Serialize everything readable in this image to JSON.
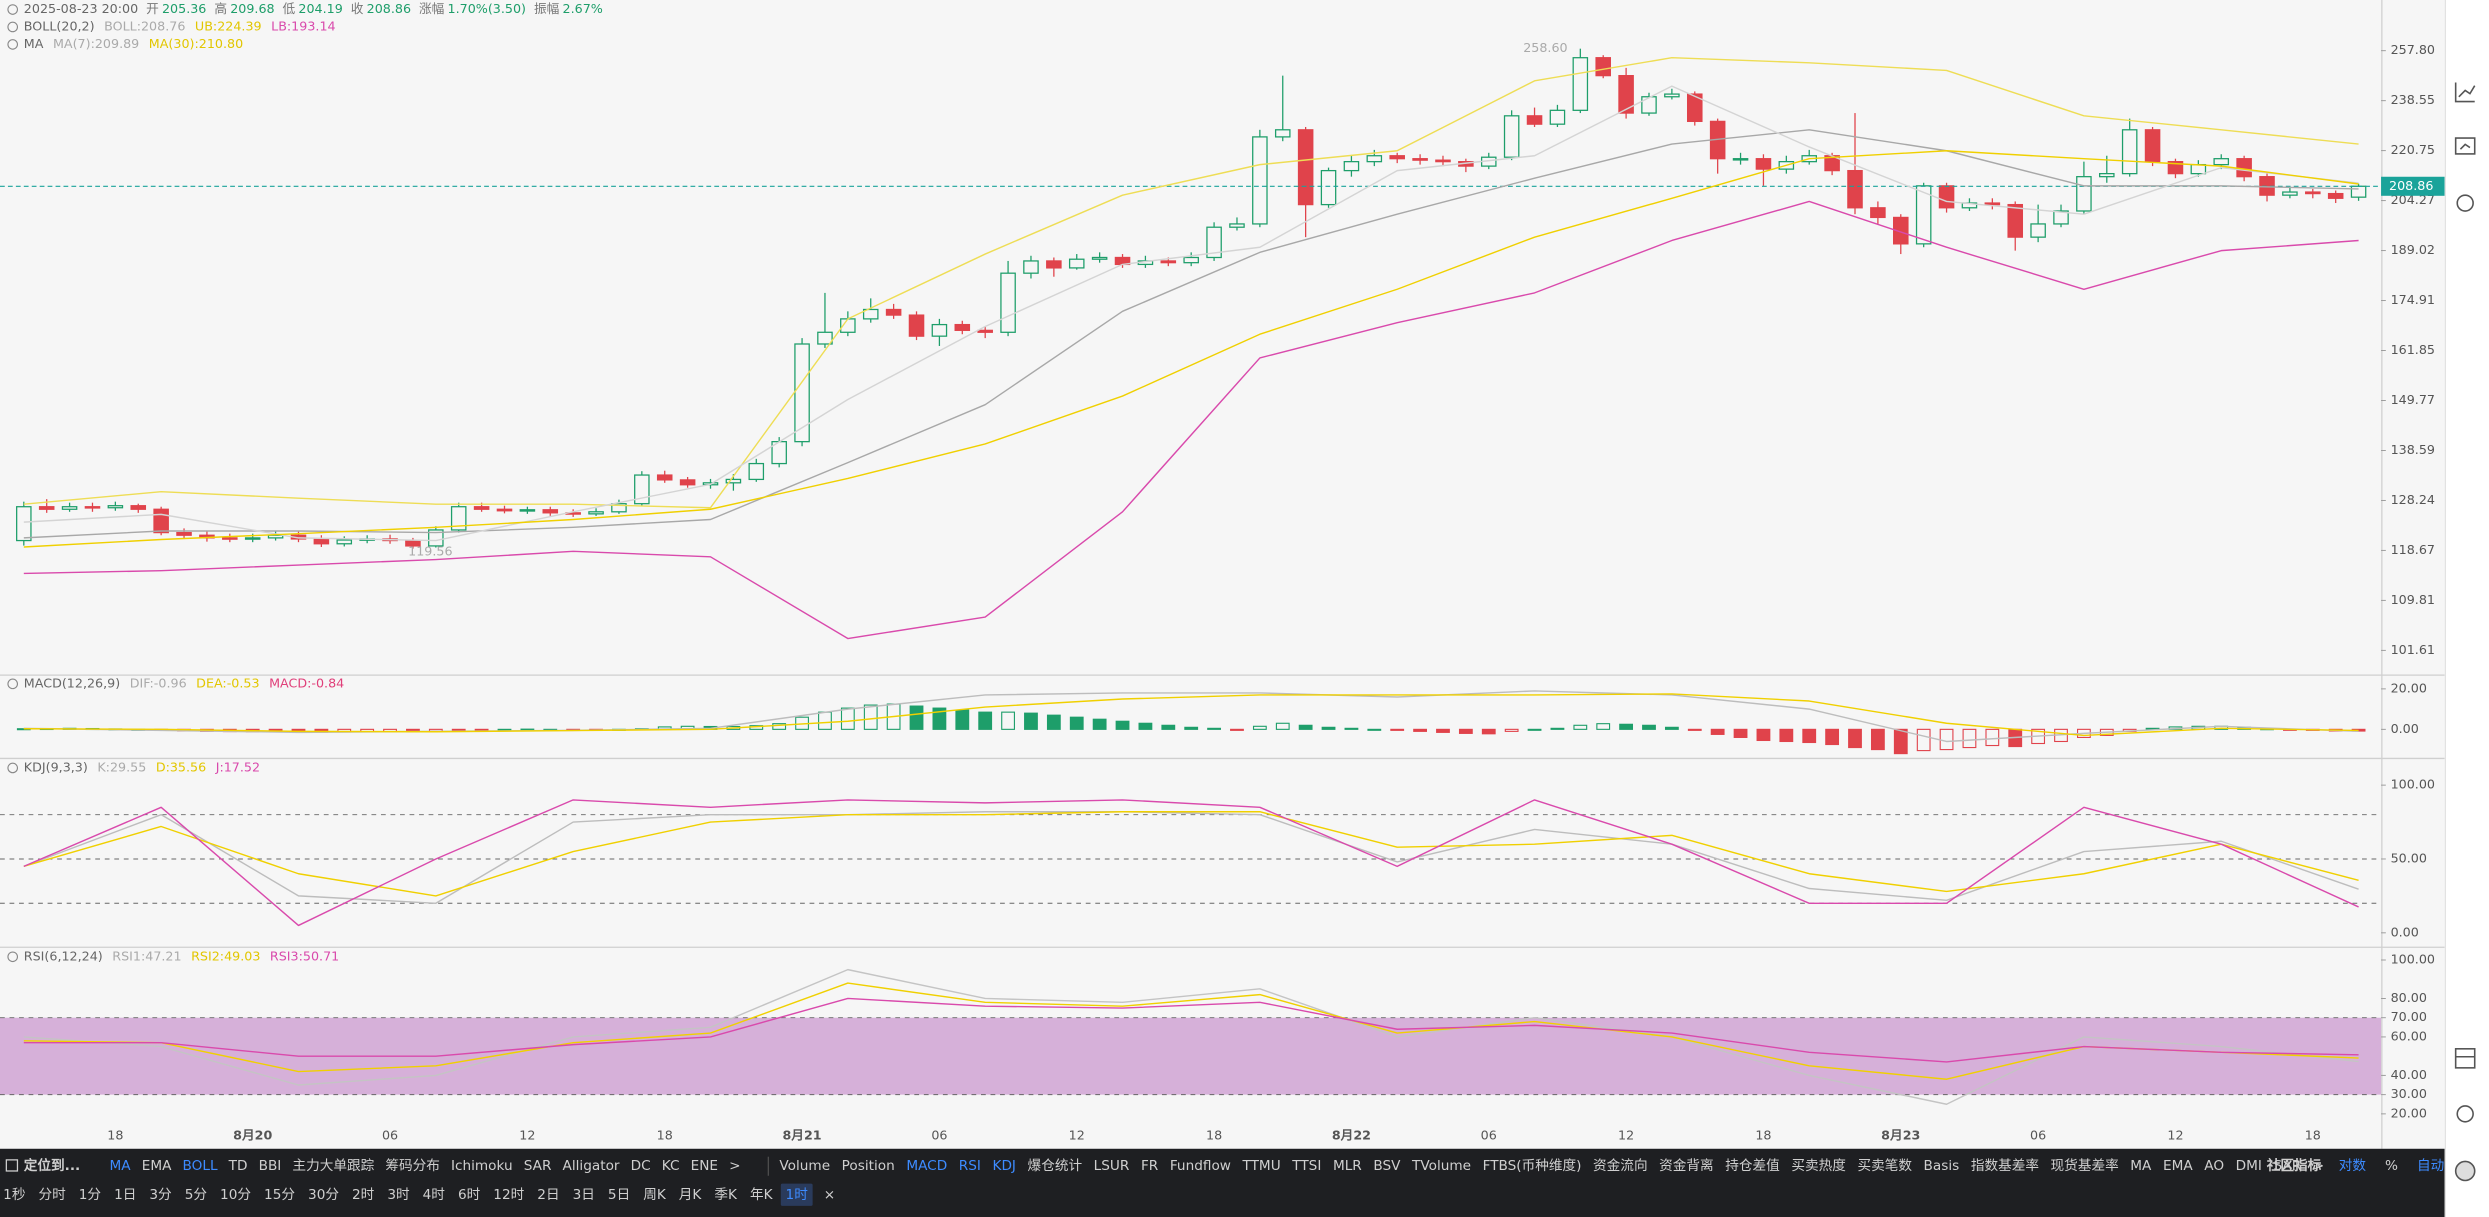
{
  "status": {
    "datetime": "2025-08-23 20:00",
    "items": [
      {
        "label": "开",
        "value": "205.36"
      },
      {
        "label": "高",
        "value": "209.68"
      },
      {
        "label": "低",
        "value": "204.19"
      },
      {
        "label": "收",
        "value": "208.86"
      },
      {
        "label": "涨幅",
        "value": "1.70%(3.50)"
      },
      {
        "label": "振幅",
        "value": "2.67%"
      }
    ]
  },
  "chart_data": [
    {
      "type": "candlestick",
      "categories": [
        null,
        null,
        null,
        null,
        "18",
        null,
        null,
        null,
        null,
        null,
        "8月20",
        null,
        null,
        null,
        null,
        null,
        "06",
        null,
        null,
        null,
        null,
        null,
        "12",
        null,
        null,
        null,
        null,
        null,
        "18",
        null,
        null,
        null,
        null,
        null,
        "8月21",
        null,
        null,
        null,
        null,
        null,
        "06",
        null,
        null,
        null,
        null,
        null,
        "12",
        null,
        null,
        null,
        null,
        null,
        "18",
        null,
        null,
        null,
        null,
        null,
        "8月22",
        null,
        null,
        null,
        null,
        null,
        "06",
        null,
        null,
        null,
        null,
        null,
        "12",
        null,
        null,
        null,
        null,
        null,
        "18",
        null,
        null,
        null,
        null,
        null,
        "8月23",
        null,
        null,
        null,
        null,
        null,
        "06",
        null,
        null,
        null,
        null,
        null,
        "12",
        null,
        null,
        null,
        null,
        null,
        "18",
        null,
        null
      ],
      "open": [
        120.5,
        127,
        126.5,
        127,
        126.8,
        127.2,
        126.5,
        122,
        121.5,
        121,
        120.8,
        121,
        121.5,
        120.8,
        119.9,
        120.6,
        120.8,
        120.5,
        119.5,
        122.5,
        127,
        126.5,
        126.2,
        126.4,
        125.8,
        125.6,
        126,
        127.6,
        133.4,
        132.4,
        131.4,
        131.8,
        132.5,
        135.8,
        140.5,
        163.5,
        166.5,
        170,
        172.5,
        171,
        165.5,
        168.5,
        167,
        166.5,
        182.5,
        186,
        184,
        186.5,
        187,
        185,
        186,
        185.5,
        187,
        196,
        197,
        225.5,
        228,
        203,
        214,
        217,
        219,
        218,
        217.5,
        217,
        215.5,
        218.5,
        233,
        230,
        235,
        255,
        248,
        234,
        240,
        241,
        231,
        218,
        218,
        214.5,
        217,
        219,
        214,
        202,
        199,
        191,
        209,
        202,
        203.5,
        203,
        193,
        197,
        201,
        212,
        213,
        228,
        217,
        213,
        216,
        218,
        212,
        206,
        207,
        206.5,
        205.36
      ],
      "high": [
        128,
        128.5,
        127.8,
        127.8,
        128,
        127.6,
        127,
        122.8,
        122.3,
        121.8,
        121.8,
        122.3,
        122.2,
        121.5,
        121.3,
        121.5,
        121.6,
        121,
        123.2,
        127.8,
        127.8,
        127.2,
        127,
        127,
        126.5,
        126.7,
        128.4,
        134.2,
        134.3,
        133,
        132.6,
        133.6,
        136.8,
        141.5,
        165,
        177,
        172,
        175.5,
        174,
        172,
        170,
        169.5,
        168,
        186,
        187.5,
        187,
        188,
        188.5,
        188,
        187.5,
        187,
        188.5,
        197.5,
        199,
        228,
        248,
        229,
        215,
        219,
        221,
        220,
        219.5,
        219,
        218,
        220,
        235,
        236,
        237,
        258.6,
        256,
        251,
        241.5,
        243,
        242,
        232,
        220,
        219.5,
        219,
        221,
        220,
        234,
        204,
        200,
        210,
        210,
        205,
        205,
        204,
        203,
        203,
        217,
        219,
        232,
        229,
        218,
        217.5,
        219.5,
        219,
        213,
        208.5,
        208,
        207.5,
        209.68
      ],
      "low": [
        119.56,
        125.8,
        126,
        126,
        126.2,
        125.8,
        121.5,
        120.8,
        120.3,
        120.2,
        120.2,
        120.5,
        120.2,
        119.3,
        119.4,
        120,
        119.9,
        119,
        119.2,
        122,
        126,
        125.7,
        125.6,
        125.2,
        125,
        125.2,
        125.6,
        127.2,
        131.8,
        130.8,
        130.6,
        130.2,
        132,
        135,
        139.5,
        162.5,
        165.5,
        169,
        170,
        164.5,
        163,
        166,
        165,
        165.5,
        181,
        181.5,
        183.5,
        185.5,
        184,
        184,
        184.5,
        184.5,
        186,
        195,
        196,
        224,
        193,
        202,
        212,
        215.5,
        216.5,
        216,
        215.5,
        213.5,
        214.5,
        217.5,
        229,
        229,
        234,
        247,
        232,
        233,
        239,
        229.5,
        213,
        216,
        209,
        213,
        216,
        212.5,
        200,
        197,
        188,
        190,
        200.5,
        201,
        201.5,
        189,
        191.5,
        196,
        200,
        210,
        212,
        215.5,
        211.5,
        212,
        214.5,
        210.5,
        204,
        205,
        205,
        203.5,
        204.19
      ],
      "close": [
        127,
        126.5,
        127,
        126.8,
        127.2,
        126.5,
        122,
        121.5,
        121,
        120.8,
        121,
        121.5,
        120.8,
        119.9,
        120.6,
        120.8,
        120.5,
        119.5,
        122.5,
        127,
        126.5,
        126.2,
        126.4,
        125.8,
        125.6,
        126,
        127.6,
        133.4,
        132.4,
        131.4,
        131.8,
        132.5,
        135.8,
        140.5,
        163.5,
        166.5,
        170,
        172.5,
        171,
        165.5,
        168.5,
        167,
        166.5,
        182.5,
        186,
        184,
        186.5,
        187,
        185,
        186,
        185.5,
        187,
        196,
        197,
        225.5,
        228,
        203,
        214,
        217,
        219,
        218,
        217.5,
        217,
        215.5,
        218.5,
        233,
        230,
        235,
        255,
        248,
        234,
        240,
        241,
        231,
        218,
        218,
        214.5,
        217,
        219,
        214,
        202,
        199,
        191,
        209,
        202,
        203.5,
        203,
        193,
        197,
        201,
        212,
        213,
        228,
        217,
        213,
        216,
        218,
        212,
        206,
        207,
        206.5,
        205,
        208.86
      ],
      "up_color": "#1e9e6a",
      "down_color": "#e0434b",
      "ylim": [
        97.9,
        278.9
      ],
      "log": true,
      "yticks": [
        {
          "value": 257.8,
          "label": "257.80"
        },
        238.55,
        220.75,
        204.27,
        189.02,
        174.91,
        161.85,
        149.77,
        138.59,
        128.24,
        118.67,
        109.81,
        101.61
      ],
      "x": [
        0,
        6,
        12,
        18,
        24,
        30,
        36,
        42,
        48,
        54,
        60,
        66,
        72,
        78,
        84,
        90,
        96,
        102
      ],
      "series": [
        {
          "color": "#a8a8a8",
          "values": [
            121,
            122.3,
            122.3,
            122,
            123,
            124.5,
            136,
            148.8,
            172,
            188.5,
            200,
            211.5,
            223,
            228,
            220.7,
            209,
            209,
            208
          ]
        },
        {
          "color": "#eedd55",
          "values": [
            127.5,
            130,
            128.7,
            127.5,
            127.5,
            126.8,
            170,
            188,
            206,
            216,
            220.7,
            246,
            255,
            253,
            250,
            233,
            228,
            223
          ]
        },
        {
          "color": "#d94aac",
          "values": [
            114.5,
            115,
            116,
            117,
            118.5,
            117.5,
            103.5,
            107,
            126,
            160,
            169,
            177,
            192,
            204,
            190,
            178,
            189,
            192
          ]
        },
        {
          "color": "#d4d4d4",
          "values": [
            124,
            125.5,
            121,
            120.5,
            126,
            131.5,
            150,
            168,
            185,
            190,
            214,
            219,
            244,
            222,
            204,
            200,
            215,
            209.9
          ]
        },
        {
          "color": "#f0d000",
          "values": [
            119.3,
            120.7,
            121.8,
            123,
            124.5,
            126.5,
            132.7,
            140,
            150.8,
            166,
            178,
            193,
            205,
            218,
            220.7,
            218,
            215.5,
            209.6
          ]
        }
      ],
      "indicators": [
        {
          "title": "BOLL(20,2)",
          "legend": [
            "BOLL:208.76",
            "UB:224.39",
            "LB:193.14"
          ],
          "legend_colors": [
            "#aaaaaa",
            "#e2c600",
            "#d94aac"
          ]
        },
        {
          "title": "MA",
          "legend": [
            "MA(7):209.89",
            "MA(30):210.80"
          ],
          "legend_colors": [
            "#aaaaaa",
            "#e2c600"
          ]
        }
      ],
      "max_label": "258.60",
      "min_label": "119.56",
      "last_price": 208.86,
      "last_color": "#1aa39a"
    },
    {
      "type": "macd",
      "title": "MACD(12,26,9)",
      "legend": [
        "DIF:-0.96",
        "DEA:-0.53",
        "MACD:-0.84"
      ],
      "legend_colors": [
        "#aaaaaa",
        "#e2c600",
        "#e0407a"
      ],
      "histogram": [
        0.3,
        0.4,
        0.5,
        0.4,
        0.2,
        0,
        -0.5,
        -0.8,
        -1,
        -1.1,
        -1.2,
        -1.2,
        -1.3,
        -1.4,
        -1.3,
        -1.2,
        -1.1,
        -1.2,
        -0.9,
        -0.3,
        -0.1,
        0,
        0.1,
        0,
        -0.1,
        -0.1,
        0,
        0.3,
        1.2,
        1.5,
        1.4,
        1.4,
        1.8,
        2.8,
        6,
        8.5,
        10.5,
        12,
        12.5,
        11.5,
        10.5,
        9.5,
        8.5,
        8.5,
        8,
        7,
        6,
        5,
        4,
        3,
        2,
        1,
        0.5,
        -0.5,
        1.5,
        3,
        2,
        1,
        0.5,
        0,
        -0.5,
        -1,
        -1.5,
        -2,
        -2.2,
        -1,
        0,
        0.5,
        2,
        2.8,
        2.5,
        2,
        1,
        -0.5,
        -2.5,
        -4,
        -5.5,
        -6,
        -6.5,
        -7.5,
        -9,
        -10,
        -12,
        -10.5,
        -10,
        -9,
        -8,
        -8.5,
        -7,
        -6,
        -4,
        -3,
        -1,
        0.5,
        1.2,
        1.5,
        1.5,
        1,
        0.3,
        -0.3,
        -0.5,
        -0.8,
        -0.84
      ],
      "up_color": "#1e9e6a",
      "down_color": "#e0434b",
      "x": [
        0,
        6,
        12,
        18,
        24,
        30,
        36,
        42,
        48,
        54,
        60,
        66,
        72,
        78,
        84,
        90,
        96,
        102
      ],
      "series": [
        {
          "color": "#bdbdbd",
          "values": [
            0.5,
            -0.5,
            -1.5,
            -1,
            -0.5,
            0.5,
            10,
            17,
            18,
            18,
            16,
            19,
            17,
            10,
            -6,
            -2,
            1.5,
            -0.96
          ]
        },
        {
          "color": "#f0d000",
          "values": [
            0.3,
            0,
            -1,
            -1.2,
            -0.6,
            0,
            4,
            11,
            15,
            17,
            17,
            17,
            17.5,
            14,
            3,
            -3,
            0.5,
            -0.53
          ]
        }
      ],
      "ylim": [
        -13.6,
        26.4
      ],
      "yticks": [
        {
          "value": 20,
          "label": "20.00"
        },
        {
          "value": 0,
          "label": "0.00"
        }
      ]
    },
    {
      "type": "line",
      "title": "KDJ(9,3,3)",
      "legend": [
        "K:29.55",
        "D:35.56",
        "J:17.52"
      ],
      "legend_colors": [
        "#aaaaaa",
        "#e2c600",
        "#d94aac"
      ],
      "x": [
        0,
        6,
        12,
        18,
        24,
        30,
        36,
        42,
        48,
        54,
        60,
        66,
        72,
        78,
        84,
        90,
        96,
        102
      ],
      "series": [
        {
          "color": "#bdbdbd",
          "values": [
            45,
            80,
            25,
            20,
            75,
            80,
            80,
            82,
            82,
            80,
            48,
            70,
            60,
            30,
            22,
            55,
            62,
            29.55
          ]
        },
        {
          "color": "#f0d000",
          "values": [
            45,
            72,
            40,
            25,
            55,
            75,
            80,
            80,
            82,
            82,
            58,
            60,
            66,
            40,
            28,
            40,
            60,
            35.56
          ]
        },
        {
          "color": "#d94aac",
          "values": [
            45,
            85,
            5,
            50,
            90,
            85,
            90,
            88,
            90,
            85,
            45,
            90,
            60,
            20,
            20,
            85,
            60,
            17.52
          ]
        }
      ],
      "ylim": [
        -8.7,
        117
      ],
      "yticks": [
        {
          "value": 100,
          "label": "100.00"
        },
        {
          "value": 50,
          "label": "50.00"
        },
        {
          "value": 0,
          "label": "0.00"
        }
      ],
      "guides": [
        80,
        50,
        20
      ]
    },
    {
      "type": "line",
      "title": "RSI(6,12,24)",
      "legend": [
        "RSI1:47.21",
        "RSI2:49.03",
        "RSI3:50.71"
      ],
      "legend_colors": [
        "#aaaaaa",
        "#e2c600",
        "#d94aac"
      ],
      "x": [
        0,
        6,
        12,
        18,
        24,
        30,
        36,
        42,
        48,
        54,
        60,
        66,
        72,
        78,
        84,
        90,
        96,
        102
      ],
      "series": [
        {
          "color": "#c4c4c4",
          "values": [
            60,
            55,
            35,
            40,
            60,
            65,
            95,
            80,
            78,
            85,
            60,
            70,
            60,
            40,
            25,
            60,
            55,
            47.21
          ]
        },
        {
          "color": "#f0d000",
          "values": [
            58,
            57,
            42,
            45,
            57,
            62,
            88,
            78,
            76,
            82,
            62,
            68,
            60,
            45,
            38,
            55,
            52,
            49.03
          ]
        },
        {
          "color": "#d94aac",
          "values": [
            57,
            57,
            50,
            50,
            56,
            60,
            80,
            76,
            75,
            78,
            64,
            66,
            62,
            52,
            47,
            55,
            52,
            50.71
          ]
        }
      ],
      "ylim": [
        3.5,
        105.8
      ],
      "yticks": [
        {
          "value": 100,
          "label": "100.00"
        },
        {
          "value": 80,
          "label": "80.00"
        },
        {
          "value": 70,
          "label": "70.00"
        },
        {
          "value": 60,
          "label": "60.00"
        },
        {
          "value": 40,
          "label": "40.00"
        },
        {
          "value": 30,
          "label": "30.00"
        },
        {
          "value": 20,
          "label": "20.00"
        }
      ],
      "band": [
        30,
        70
      ],
      "band_color": "#d3a8d6",
      "guides": [
        70,
        30
      ]
    }
  ],
  "toolbar": {
    "locate": "定位到...",
    "overlays": [
      {
        "text": "MA",
        "on": true
      },
      "EMA",
      {
        "text": "BOLL",
        "on": true
      },
      "TD",
      "BBI",
      "主力大单跟踪",
      "筹码分布",
      "Ichimoku",
      "SAR",
      "Alligator",
      "DC",
      "KC",
      "ENE"
    ],
    "more1": ">",
    "subs": [
      "Volume",
      "Position",
      {
        "text": "MACD",
        "on": true
      },
      {
        "text": "RSI",
        "on": true
      },
      {
        "text": "KDJ",
        "on": true
      },
      "爆仓统计",
      "LSUR",
      "FR",
      "Fundflow",
      "TTMU",
      "TTSI",
      "MLR",
      "BSV",
      "TVolume",
      "FTBS(币种维度)",
      "资金流向",
      "资金背离",
      "持仓差值",
      "买卖热度",
      "买卖笔数",
      "Basis",
      "指数基差率",
      "现货基差率",
      "MA",
      "EMA",
      "AO",
      "DMI",
      "SAR"
    ],
    "more2": ">",
    "community": "社区指标",
    "options": [
      {
        "text": "对数",
        "on": true
      },
      "%",
      {
        "text": "自动",
        "on": true
      }
    ],
    "intervals": [
      "1秒",
      "分时",
      "1分",
      "1日",
      "3分",
      "5分",
      "10分",
      "15分",
      "30分",
      "2时",
      "3时",
      "4时",
      "6时",
      "12时",
      "2日",
      "3日",
      "5日",
      "周K",
      "月K",
      "季K",
      "年K"
    ],
    "current": "1时",
    "close": "×"
  }
}
